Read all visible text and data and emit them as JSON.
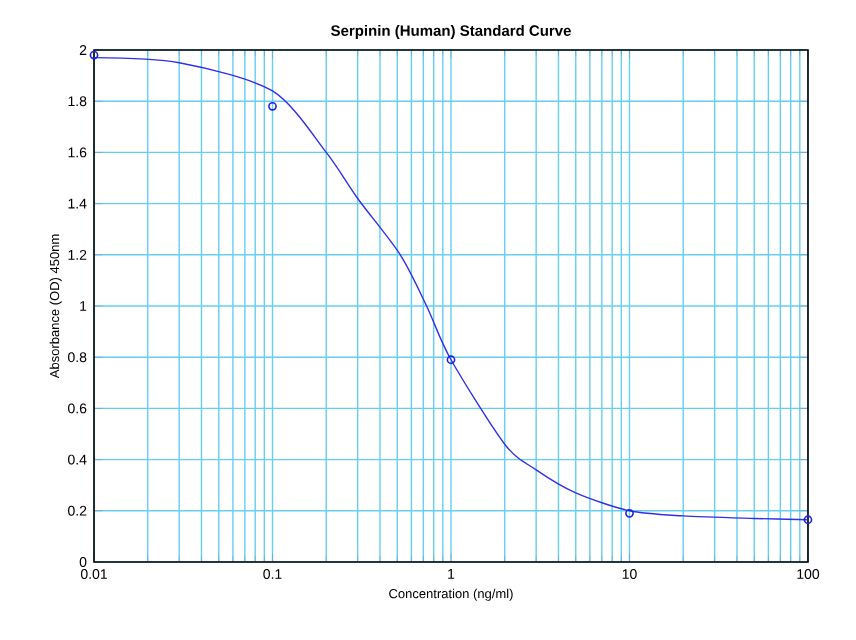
{
  "chart_data": {
    "type": "scatter",
    "title": "Serpinin (Human) Standard Curve",
    "xlabel": "Concentration (ng/ml)",
    "ylabel": "Absorbance (OD) 450nm",
    "log": "x",
    "grid": true,
    "xlim": [
      0.01,
      100
    ],
    "ylim": [
      0,
      2
    ],
    "xticks": [
      0.01,
      0.1,
      1,
      10,
      100
    ],
    "yticks": [
      0,
      0.2,
      0.4,
      0.6,
      0.8,
      1,
      1.2,
      1.4,
      1.6,
      1.8,
      2
    ],
    "series": [
      {
        "color": "#2020e0",
        "marker": "circle",
        "x": [
          0.01,
          0.1,
          1,
          10,
          100
        ],
        "values": [
          1.98,
          1.78,
          0.79,
          0.19,
          0.165
        ]
      },
      {
        "type": "line",
        "color": "#3030e8",
        "marker": "none",
        "line_style": "solid",
        "x": [
          0.01,
          0.03,
          0.1,
          0.2,
          0.3,
          0.52,
          0.73,
          1,
          2,
          3,
          5,
          10,
          20,
          50,
          100
        ],
        "values": [
          1.97,
          1.95,
          1.84,
          1.6,
          1.42,
          1.2,
          1.0,
          0.79,
          0.46,
          0.36,
          0.27,
          0.2,
          0.18,
          0.17,
          0.165
        ]
      }
    ]
  }
}
